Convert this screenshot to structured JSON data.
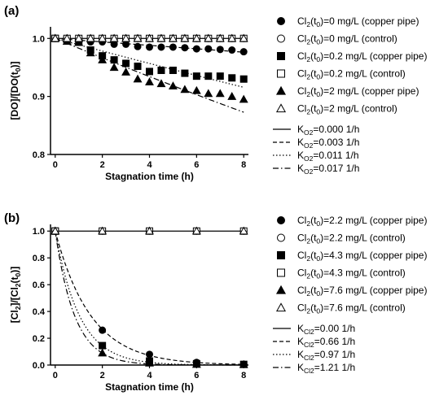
{
  "chart_data": [
    {
      "panel_label": "(a)",
      "type": "scatter",
      "xlabel": "Stagnation time (h)",
      "ylabel": "[DO]/[DO(t0)]",
      "ylabel_parts": [
        "[DO]/[DO(t",
        "0",
        ")]"
      ],
      "xlim": [
        -0.2,
        8.2
      ],
      "ylim": [
        0.8,
        1.02
      ],
      "xticks": [
        "0",
        "2",
        "4",
        "6",
        "8"
      ],
      "yticks": [
        "0.8",
        "0.9",
        "1.0"
      ],
      "ytick_values": [
        0.8,
        0.9,
        1.0
      ],
      "series": [
        {
          "name": "Cl2(t0)=0 mg/L (copper pipe)",
          "label_parts": [
            "Cl",
            "2",
            "(t",
            "0",
            ")=0 mg/L (copper pipe)"
          ],
          "marker": "circle",
          "filled": true,
          "x": [
            0,
            0.5,
            1,
            1.5,
            2,
            2.5,
            3,
            3.5,
            4,
            4.5,
            5,
            5.5,
            6,
            6.5,
            7,
            7.5,
            8
          ],
          "y": [
            1.0,
            1.0,
            0.998,
            0.994,
            0.994,
            0.99,
            0.99,
            0.986,
            0.985,
            0.985,
            0.985,
            0.984,
            0.982,
            0.982,
            0.981,
            0.98,
            0.977
          ]
        },
        {
          "name": "Cl2(t0)=0 mg/L (control)",
          "label_parts": [
            "Cl",
            "2",
            "(t",
            "0",
            ")=0 mg/L (control)"
          ],
          "marker": "circle",
          "filled": false,
          "x": [
            0,
            0.5,
            1,
            1.5,
            2,
            2.5,
            3,
            3.5,
            4,
            4.5,
            5,
            5.5,
            6,
            6.5,
            7,
            7.5,
            8
          ],
          "y": [
            1.0,
            1.0,
            1.0,
            1.0,
            1.0,
            1.0,
            1.0,
            1.0,
            1.0,
            1.0,
            1.0,
            1.0,
            1.0,
            1.0,
            1.0,
            1.0,
            1.0
          ]
        },
        {
          "name": "Cl2(t0)=0.2 mg/L (copper pipe)",
          "label_parts": [
            "Cl",
            "2",
            "(t",
            "0",
            ")=0.2 mg/L (copper pipe)"
          ],
          "marker": "square",
          "filled": true,
          "x": [
            0,
            0.5,
            1,
            1.5,
            2,
            2.5,
            3,
            3.5,
            4,
            4.5,
            5,
            5.5,
            6,
            6.5,
            7,
            7.5,
            8
          ],
          "y": [
            1.0,
            0.998,
            0.995,
            0.98,
            0.97,
            0.963,
            0.957,
            0.952,
            0.943,
            0.945,
            0.945,
            0.94,
            0.935,
            0.935,
            0.935,
            0.932,
            0.93
          ]
        },
        {
          "name": "Cl2(t0)=0.2 mg/L (control)",
          "label_parts": [
            "Cl",
            "2",
            "(t",
            "0",
            ")=0.2 mg/L (control)"
          ],
          "marker": "square",
          "filled": false,
          "x": [
            0,
            0.5,
            1,
            1.5,
            2,
            2.5,
            3,
            3.5,
            4,
            4.5,
            5,
            5.5,
            6,
            6.5,
            7,
            7.5,
            8
          ],
          "y": [
            1.0,
            1.0,
            1.0,
            1.0,
            1.0,
            1.0,
            1.0,
            1.0,
            1.0,
            1.0,
            1.0,
            1.0,
            1.0,
            1.0,
            1.0,
            1.0,
            1.0
          ]
        },
        {
          "name": "Cl2(t0)=2 mg/L (copper pipe)",
          "label_parts": [
            "Cl",
            "2",
            "(t",
            "0",
            ")=2 mg/L (copper pipe)"
          ],
          "marker": "triangle",
          "filled": true,
          "x": [
            0,
            0.5,
            1,
            1.5,
            2,
            2.5,
            3,
            3.5,
            4,
            4.5,
            5,
            5.5,
            6,
            6.5,
            7,
            7.5,
            8
          ],
          "y": [
            1.0,
            0.995,
            0.993,
            0.975,
            0.963,
            0.95,
            0.942,
            0.93,
            0.925,
            0.922,
            0.918,
            0.912,
            0.91,
            0.905,
            0.905,
            0.9,
            0.895
          ]
        },
        {
          "name": "Cl2(t0)=2 mg/L (control)",
          "label_parts": [
            "Cl",
            "2",
            "(t",
            "0",
            ")=2 mg/L (control)"
          ],
          "marker": "triangle",
          "filled": false,
          "x": [
            0,
            0.5,
            1,
            1.5,
            2,
            2.5,
            3,
            3.5,
            4,
            4.5,
            5,
            5.5,
            6,
            6.5,
            7,
            7.5,
            8
          ],
          "y": [
            1.0,
            1.0,
            1.0,
            1.0,
            1.0,
            1.0,
            1.0,
            1.0,
            1.0,
            1.0,
            1.0,
            1.0,
            1.0,
            1.0,
            1.0,
            1.0,
            1.0
          ]
        }
      ],
      "fits": [
        {
          "name": "KO2=0.000 1/h",
          "label_parts": [
            "K",
            "O2",
            "=0.000 1/h"
          ],
          "k": 0.0,
          "dash": "solid"
        },
        {
          "name": "KO2=0.003 1/h",
          "label_parts": [
            "K",
            "O2",
            "=0.003 1/h"
          ],
          "k": 0.003,
          "dash": "dashed"
        },
        {
          "name": "KO2=0.011 1/h",
          "label_parts": [
            "K",
            "O2",
            "=0.011 1/h"
          ],
          "k": 0.011,
          "dash": "dotted"
        },
        {
          "name": "KO2=0.017 1/h",
          "label_parts": [
            "K",
            "O2",
            "=0.017 1/h"
          ],
          "k": 0.017,
          "dash": "dashdot"
        }
      ],
      "legend_position": "right"
    },
    {
      "panel_label": "(b)",
      "type": "scatter",
      "xlabel": "Stagnation time (h)",
      "ylabel": "[Cl2]/[Cl2(t0)]",
      "ylabel_parts": [
        "[Cl",
        "2",
        "]/[Cl",
        "2",
        "(t",
        "0",
        ")]"
      ],
      "xlim": [
        -0.2,
        8.2
      ],
      "ylim": [
        0.0,
        1.05
      ],
      "xticks": [
        "0",
        "2",
        "4",
        "6",
        "8"
      ],
      "yticks": [
        "0.0",
        "0.2",
        "0.4",
        "0.6",
        "0.8",
        "1.0"
      ],
      "ytick_values": [
        0.0,
        0.2,
        0.4,
        0.6,
        0.8,
        1.0
      ],
      "series": [
        {
          "name": "Cl2(t0)=2.2 mg/L (copper pipe)",
          "label_parts": [
            "Cl",
            "2",
            "(t",
            "0",
            ")=2.2 mg/L (copper pipe)"
          ],
          "marker": "circle",
          "filled": true,
          "x": [
            0,
            2,
            4,
            6,
            8
          ],
          "y": [
            1.0,
            0.26,
            0.08,
            0.02,
            0.005
          ]
        },
        {
          "name": "Cl2(t0)=2.2 mg/L (control)",
          "label_parts": [
            "Cl",
            "2",
            "(t",
            "0",
            ")=2.2 mg/L (control)"
          ],
          "marker": "circle",
          "filled": false,
          "x": [
            0,
            2,
            4,
            6,
            8
          ],
          "y": [
            1.0,
            1.0,
            1.0,
            1.0,
            1.0
          ]
        },
        {
          "name": "Cl2(t0)=4.3 mg/L (copper pipe)",
          "label_parts": [
            "Cl",
            "2",
            "(t",
            "0",
            ")=4.3 mg/L (copper pipe)"
          ],
          "marker": "square",
          "filled": true,
          "x": [
            0,
            2,
            4,
            6,
            8
          ],
          "y": [
            1.0,
            0.145,
            0.03,
            0.01,
            0.005
          ]
        },
        {
          "name": "Cl2(t0)=4.3 mg/L (control)",
          "label_parts": [
            "Cl",
            "2",
            "(t",
            "0",
            ")=4.3 mg/L (control)"
          ],
          "marker": "square",
          "filled": false,
          "x": [
            0,
            2,
            4,
            6,
            8
          ],
          "y": [
            1.0,
            1.0,
            1.0,
            1.0,
            1.0
          ]
        },
        {
          "name": "Cl2(t0)=7.6 mg/L (copper pipe)",
          "label_parts": [
            "Cl",
            "2",
            "(t",
            "0",
            ")=7.6 mg/L (copper pipe)"
          ],
          "marker": "triangle",
          "filled": true,
          "x": [
            0,
            2,
            4,
            6,
            8
          ],
          "y": [
            1.0,
            0.09,
            0.015,
            0.005,
            0.003
          ]
        },
        {
          "name": "Cl2(t0)=7.6 mg/L (control)",
          "label_parts": [
            "Cl",
            "2",
            "(t",
            "0",
            ")=7.6 mg/L (control)"
          ],
          "marker": "triangle",
          "filled": false,
          "x": [
            0,
            2,
            4,
            6,
            8
          ],
          "y": [
            1.0,
            1.0,
            1.0,
            1.0,
            1.0
          ]
        }
      ],
      "fits": [
        {
          "name": "KCl2=0.00 1/h",
          "label_parts": [
            "K",
            "Cl2",
            "=0.00 1/h"
          ],
          "k": 0.0,
          "dash": "solid"
        },
        {
          "name": "KCl2=0.66 1/h",
          "label_parts": [
            "K",
            "Cl2",
            "=0.66 1/h"
          ],
          "k": 0.66,
          "dash": "dashed"
        },
        {
          "name": "KCl2=0.97 1/h",
          "label_parts": [
            "K",
            "Cl2",
            "=0.97 1/h"
          ],
          "k": 0.97,
          "dash": "dotted"
        },
        {
          "name": "KCl2=1.21 1/h",
          "label_parts": [
            "K",
            "Cl2",
            "=1.21 1/h"
          ],
          "k": 1.21,
          "dash": "dashdot"
        }
      ],
      "legend_position": "right"
    }
  ]
}
